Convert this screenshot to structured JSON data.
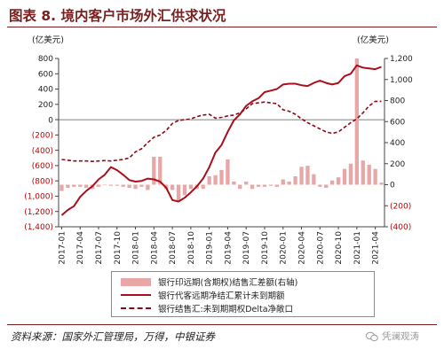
{
  "title": "图表 8. 境内客户市场外汇供求状况",
  "source": "资料来源：国家外汇管理局，万得，中银证券",
  "watermark": "凭澜观涛",
  "chart_data": {
    "type": "bar",
    "left_unit": "(亿美元)",
    "right_unit": "(亿美元)",
    "left_axis": {
      "ylim": [
        -1400,
        800
      ],
      "ticks": [
        800,
        600,
        400,
        200,
        0,
        -200,
        -400,
        -600,
        -800,
        -1000,
        -1200,
        -1400
      ],
      "tick_labels": [
        "800",
        "600",
        "400",
        "200",
        "0",
        "(200)",
        "(400)",
        "(600)",
        "(800)",
        "(1,000)",
        "(1,200)",
        "(1,400)"
      ]
    },
    "right_axis": {
      "ylim": [
        -400,
        1200
      ],
      "ticks": [
        1200,
        1000,
        800,
        600,
        400,
        200,
        0,
        -200,
        -400
      ],
      "tick_labels": [
        "1,200",
        "1,000",
        "800",
        "600",
        "400",
        "200",
        "0",
        "(200)",
        "(400)"
      ]
    },
    "x_labels": [
      "2017-01",
      "2017-04",
      "2017-07",
      "2017-10",
      "2018-01",
      "2018-04",
      "2018-07",
      "2018-10",
      "2019-01",
      "2019-04",
      "2019-07",
      "2019-10",
      "2020-01",
      "2020-04",
      "2020-07",
      "2020-10",
      "2021-01",
      "2021-04"
    ],
    "months": [
      "2017-01",
      "2017-02",
      "2017-03",
      "2017-04",
      "2017-05",
      "2017-06",
      "2017-07",
      "2017-08",
      "2017-09",
      "2017-10",
      "2017-11",
      "2017-12",
      "2018-01",
      "2018-02",
      "2018-03",
      "2018-04",
      "2018-05",
      "2018-06",
      "2018-07",
      "2018-08",
      "2018-09",
      "2018-10",
      "2018-11",
      "2018-12",
      "2019-01",
      "2019-02",
      "2019-03",
      "2019-04",
      "2019-05",
      "2019-06",
      "2019-07",
      "2019-08",
      "2019-09",
      "2019-10",
      "2019-11",
      "2019-12",
      "2020-01",
      "2020-02",
      "2020-03",
      "2020-04",
      "2020-05",
      "2020-06",
      "2020-07",
      "2020-08",
      "2020-09",
      "2020-10",
      "2020-11",
      "2020-12",
      "2021-01",
      "2021-02",
      "2021-03",
      "2021-04",
      "2021-05"
    ],
    "series": [
      {
        "name": "银行印远期(含期权)结售汇差额(右轴)",
        "kind": "bar",
        "axis": "right",
        "color": "#e8a6a6",
        "values": [
          -60,
          -30,
          -20,
          -20,
          -30,
          -40,
          -20,
          0,
          -10,
          -10,
          -20,
          -30,
          -40,
          -20,
          -50,
          265,
          265,
          -40,
          -50,
          -150,
          -100,
          -40,
          -40,
          -40,
          80,
          90,
          140,
          240,
          30,
          -40,
          30,
          -40,
          -20,
          -20,
          -10,
          -20,
          50,
          30,
          80,
          170,
          180,
          100,
          -20,
          -30,
          40,
          70,
          150,
          200,
          1200,
          230,
          190,
          150,
          20
        ]
      },
      {
        "name": "银行代客远期净结汇累计未到期额",
        "kind": "line",
        "axis": "left",
        "color": "#a8101c",
        "values": [
          -1250,
          -1180,
          -1130,
          -1010,
          -930,
          -870,
          -780,
          -720,
          -620,
          -660,
          -720,
          -790,
          -810,
          -800,
          -770,
          -780,
          -810,
          -890,
          -1050,
          -1070,
          -1020,
          -950,
          -870,
          -770,
          -620,
          -430,
          -330,
          -160,
          -10,
          70,
          180,
          240,
          280,
          360,
          380,
          400,
          460,
          470,
          470,
          450,
          440,
          480,
          510,
          480,
          460,
          480,
          570,
          600,
          710,
          680,
          670,
          660,
          690
        ]
      },
      {
        "name": "银行结售汇:未到期期权Delta净敞口",
        "kind": "line",
        "axis": "left",
        "dashed": true,
        "color": "#8c0a16",
        "values": [
          -520,
          -530,
          -540,
          -540,
          -540,
          -545,
          -540,
          -535,
          -540,
          -530,
          -520,
          -500,
          -420,
          -380,
          -300,
          -230,
          -200,
          -140,
          -50,
          -10,
          0,
          10,
          40,
          60,
          70,
          20,
          30,
          50,
          60,
          90,
          140,
          210,
          220,
          230,
          220,
          210,
          130,
          110,
          70,
          10,
          -40,
          -80,
          -120,
          -160,
          -180,
          -160,
          -100,
          -40,
          10,
          90,
          180,
          240,
          240
        ]
      }
    ]
  }
}
